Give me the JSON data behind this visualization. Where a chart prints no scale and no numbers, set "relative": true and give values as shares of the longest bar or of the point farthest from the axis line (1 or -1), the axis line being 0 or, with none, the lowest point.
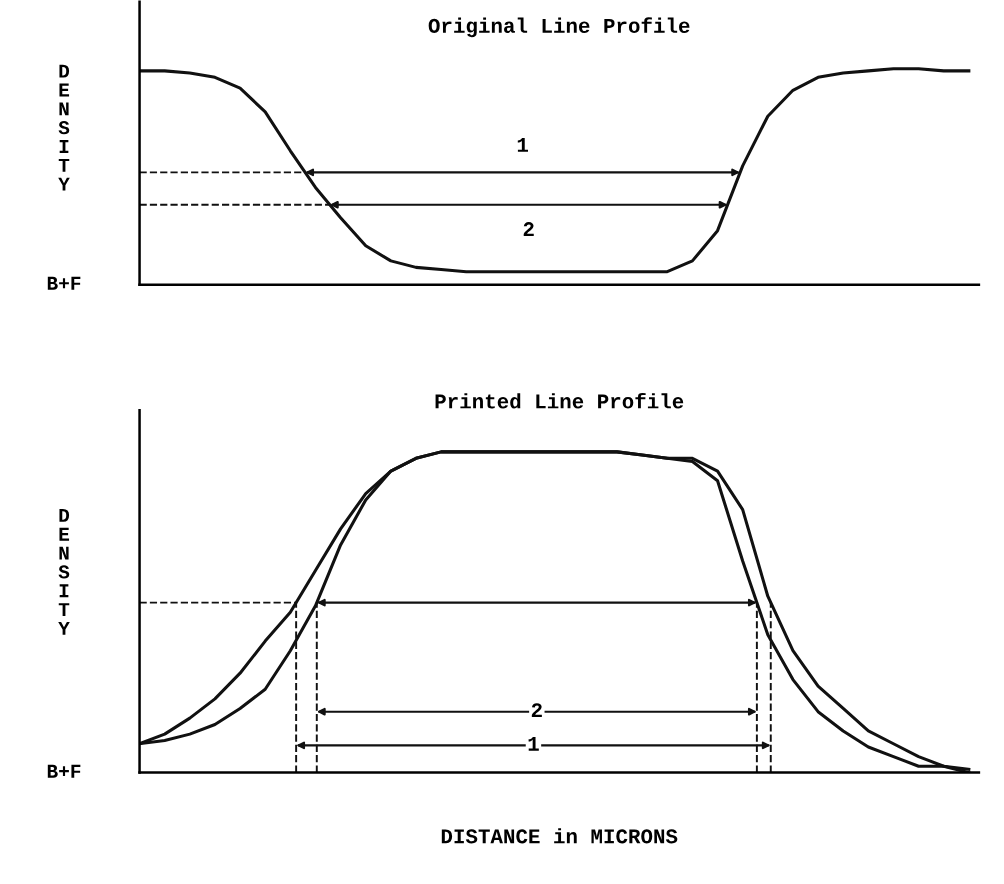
{
  "chart_data": [
    {
      "type": "line",
      "title": "Original Line Profile",
      "ylabel": "DENSITY",
      "relative": true,
      "tick_labels": false,
      "legend": false,
      "line_style": "solid",
      "marker": "none",
      "categories": [
        null,
        null,
        null,
        null,
        null,
        null,
        null,
        null,
        null,
        null,
        null,
        null,
        null,
        null,
        null,
        null,
        null,
        null,
        null,
        null,
        null,
        null,
        null,
        null,
        null,
        null,
        null,
        null,
        null,
        null,
        null,
        null,
        null,
        null
      ],
      "series": [
        {
          "color": "#111111",
          "values": [
            0.99,
            0.99,
            0.98,
            0.96,
            0.91,
            0.8,
            0.62,
            0.45,
            0.31,
            0.18,
            0.11,
            0.08,
            0.07,
            0.06,
            0.06,
            0.06,
            0.06,
            0.06,
            0.06,
            0.06,
            0.06,
            0.06,
            0.11,
            0.25,
            0.55,
            0.78,
            0.9,
            0.96,
            0.98,
            0.99,
            1.0,
            1.0,
            0.99,
            0.99
          ]
        }
      ],
      "ref_lines": [
        {
          "axis": "y",
          "value": 0.52,
          "line_style": "dashed",
          "color": "#111111"
        },
        {
          "axis": "y",
          "value": 0.37,
          "line_style": "dashed",
          "color": "#111111"
        }
      ],
      "annotations": [
        "B+F",
        "1",
        "2"
      ]
    },
    {
      "type": "line",
      "title": "Printed Line Profile",
      "ylabel": "DENSITY",
      "xlabel": "DISTANCE in MICRONS",
      "relative": true,
      "tick_labels": false,
      "legend": false,
      "line_style": "solid",
      "marker": "none",
      "categories": [
        null,
        null,
        null,
        null,
        null,
        null,
        null,
        null,
        null,
        null,
        null,
        null,
        null,
        null,
        null,
        null,
        null,
        null,
        null,
        null,
        null,
        null,
        null,
        null,
        null,
        null,
        null,
        null,
        null,
        null,
        null,
        null,
        null,
        null
      ],
      "series": [
        {
          "color": "#111111",
          "values": [
            0.09,
            0.12,
            0.17,
            0.23,
            0.31,
            0.41,
            0.5,
            0.63,
            0.76,
            0.87,
            0.94,
            0.98,
            1.0,
            1.0,
            1.0,
            1.0,
            1.0,
            1.0,
            1.0,
            1.0,
            0.99,
            0.98,
            0.98,
            0.94,
            0.82,
            0.55,
            0.38,
            0.27,
            0.2,
            0.13,
            0.09,
            0.05,
            0.02,
            0.01
          ]
        },
        {
          "color": "#111111",
          "values": [
            0.09,
            0.1,
            0.12,
            0.15,
            0.2,
            0.26,
            0.38,
            0.52,
            0.71,
            0.85,
            0.94,
            0.98,
            1.0,
            1.0,
            1.0,
            1.0,
            1.0,
            1.0,
            1.0,
            1.0,
            0.99,
            0.98,
            0.97,
            0.91,
            0.66,
            0.43,
            0.29,
            0.19,
            0.13,
            0.08,
            0.05,
            0.02,
            0.02,
            0.0
          ]
        }
      ],
      "ref_lines": [
        {
          "axis": "y",
          "value": 0.53,
          "line_style": "dashed",
          "color": "#111111"
        }
      ],
      "annotations": [
        "B+F",
        "1",
        "2"
      ]
    }
  ]
}
